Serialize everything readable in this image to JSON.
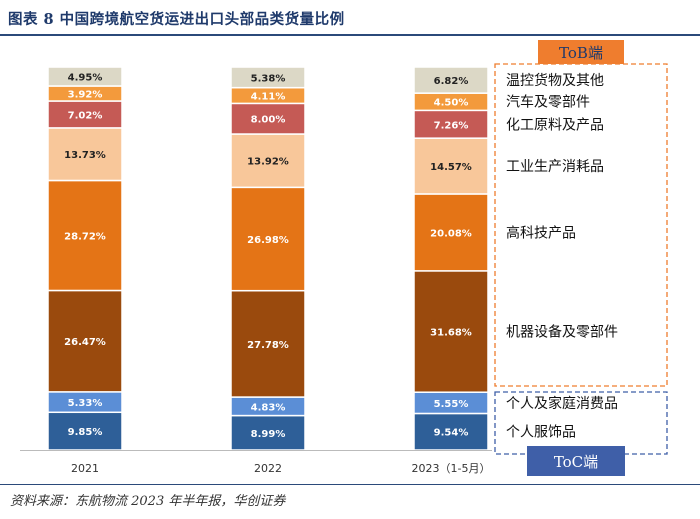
{
  "title": "图表 8   中国跨境航空货运进出口头部品类货量比例",
  "source": "资料来源：东航物流 2023 年半年报，华创证券",
  "chart_data": {
    "type": "bar",
    "stacked": true,
    "percent_stacked": true,
    "categories": [
      "2021",
      "2022",
      "2023（1-5月）"
    ],
    "series": [
      {
        "name": "个人服饰品",
        "color": "#2e5f98",
        "values": [
          9.85,
          8.99,
          9.54
        ],
        "labels": [
          "9.85%",
          "8.99%",
          "9.54%"
        ]
      },
      {
        "name": "个人及家庭消费品",
        "color": "#5b8ed6",
        "values": [
          5.33,
          4.83,
          5.55
        ],
        "labels": [
          "5.33%",
          "4.83%",
          "5.55%"
        ]
      },
      {
        "name": "机器设备及零部件",
        "color": "#9a4a0d",
        "values": [
          26.47,
          27.78,
          31.68
        ],
        "labels": [
          "26.47%",
          "27.78%",
          "31.68%"
        ]
      },
      {
        "name": "高科技产品",
        "color": "#e47416",
        "values": [
          28.72,
          26.98,
          20.08
        ],
        "labels": [
          "28.72%",
          "26.98%",
          "20.08%"
        ]
      },
      {
        "name": "工业生产消耗品",
        "color": "#f8c79a",
        "values": [
          13.73,
          13.92,
          14.57
        ],
        "labels": [
          "13.73%",
          "13.92%",
          "14.57%"
        ]
      },
      {
        "name": "化工原料及产品",
        "color": "#c55a55",
        "values": [
          7.02,
          8.0,
          7.26
        ],
        "labels": [
          "7.02%",
          "8.00%",
          "7.26%"
        ]
      },
      {
        "name": "汽车及零部件",
        "color": "#f39a3c",
        "values": [
          3.92,
          4.11,
          4.5
        ],
        "labels": [
          "3.92%",
          "4.11%",
          "4.50%"
        ]
      },
      {
        "name": "温控货物及其他",
        "color": "#dcd8c6",
        "values": [
          4.95,
          5.38,
          6.82
        ],
        "labels": [
          "4.95%",
          "5.38%",
          "6.82%"
        ]
      }
    ],
    "groups": [
      {
        "label": "ToB端",
        "series": [
          "温控货物及其他",
          "汽车及零部件",
          "化工原料及产品",
          "工业生产消耗品",
          "高科技产品",
          "机器设备及零部件"
        ],
        "color": "#ef7d2e",
        "box_style": "dashed"
      },
      {
        "label": "ToC端",
        "series": [
          "个人及家庭消费品",
          "个人服饰品"
        ],
        "color": "#3f5fa8",
        "box_style": "dashed"
      }
    ],
    "legend_position": "right",
    "ylim": [
      0,
      100
    ],
    "grid": false
  }
}
